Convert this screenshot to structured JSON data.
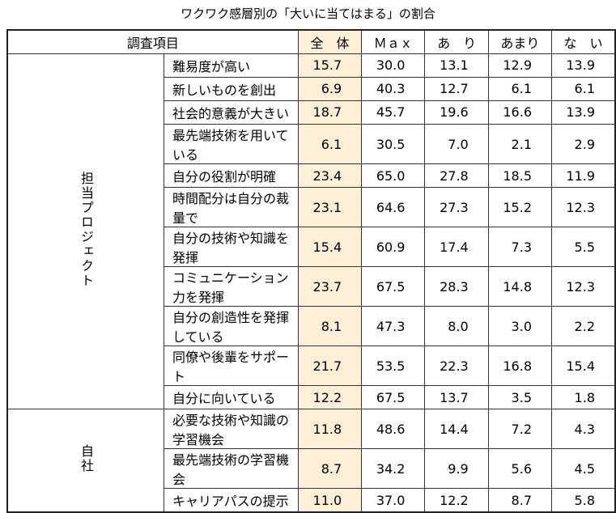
{
  "title": "ワクワク感層別の「大いに当てはまる」の割合",
  "header": [
    "調査項目",
    "全　体",
    "Ｍａｘ",
    "あ　り",
    "あまり",
    "な　い"
  ],
  "groups": [
    {
      "label": "担当プロジェクト",
      "rows": [
        {
          "item": "難易度が高い",
          "values": [
            "15.7",
            "30.0",
            "13.1",
            "12.9",
            "13.9"
          ]
        },
        {
          "item": "新しいものを創出",
          "values": [
            "6.9",
            "40.3",
            "12.7",
            "6.1",
            "6.1"
          ]
        },
        {
          "item": "社会的意義が大きい",
          "values": [
            "18.7",
            "45.7",
            "19.6",
            "16.6",
            "13.9"
          ]
        },
        {
          "item": "最先端技術を用いている",
          "values": [
            "6.1",
            "30.5",
            "7.0",
            "2.1",
            "2.9"
          ]
        },
        {
          "item": "自分の役割が明確",
          "values": [
            "23.4",
            "65.0",
            "27.8",
            "18.5",
            "11.9"
          ]
        },
        {
          "item": "時間配分は自分の裁量で",
          "values": [
            "23.1",
            "64.6",
            "27.3",
            "15.2",
            "12.3"
          ]
        },
        {
          "item": "自分の技術や知識を発揮",
          "values": [
            "15.4",
            "60.9",
            "17.4",
            "7.3",
            "5.5"
          ]
        },
        {
          "item": "コミュニケーション力を発揮",
          "values": [
            "23.7",
            "67.5",
            "28.3",
            "14.8",
            "12.3"
          ]
        },
        {
          "item": "自分の創造性を発揮している",
          "values": [
            "8.1",
            "47.3",
            "8.0",
            "3.0",
            "2.2"
          ]
        },
        {
          "item": "同僚や後輩をサポート",
          "values": [
            "21.7",
            "53.5",
            "22.3",
            "16.8",
            "15.4"
          ]
        },
        {
          "item": "自分に向いている",
          "values": [
            "12.2",
            "67.5",
            "13.7",
            "3.5",
            "1.8"
          ]
        }
      ]
    },
    {
      "label": "自社",
      "rows": [
        {
          "item": "必要な技術や知識の学習機会",
          "values": [
            "11.8",
            "48.6",
            "14.4",
            "7.2",
            "4.3"
          ]
        },
        {
          "item": "最先端技術の学習機会",
          "values": [
            "8.7",
            "34.2",
            "9.9",
            "5.6",
            "4.5"
          ]
        },
        {
          "item": "キャリアパスの提示",
          "values": [
            "11.0",
            "37.0",
            "12.2",
            "8.7",
            "5.8"
          ]
        }
      ]
    }
  ]
}
